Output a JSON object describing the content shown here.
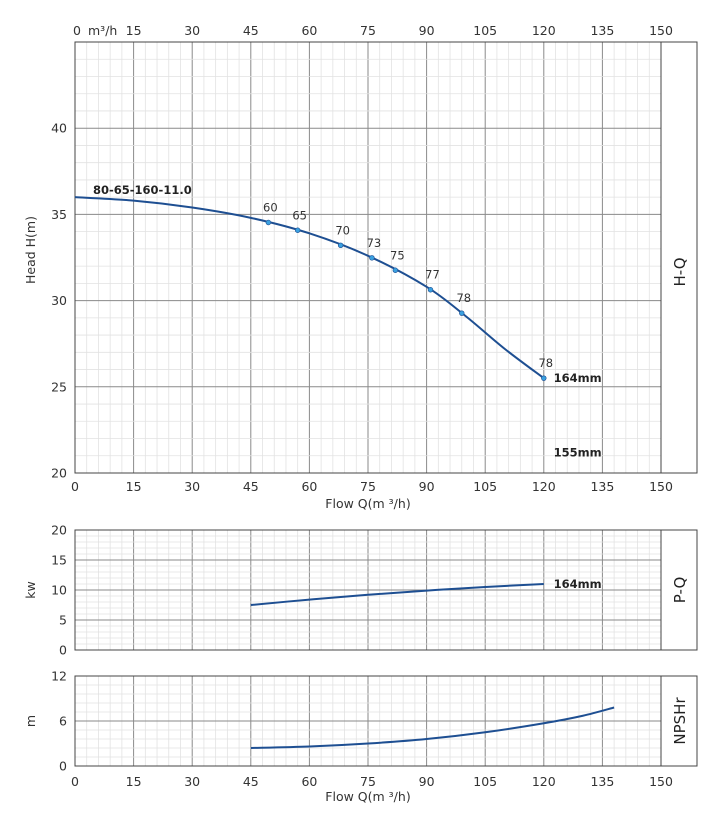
{
  "chart_data": [
    {
      "id": "hq",
      "type": "line",
      "ylabel": "Head H(m)",
      "xlabel": "Flow Q(m ³/h)",
      "side_label": "H-Q",
      "model_label": "80-65-160-11.0",
      "xlim": [
        0,
        150
      ],
      "ylim": [
        20,
        45
      ],
      "x_ticks": [
        0,
        15,
        30,
        45,
        60,
        75,
        90,
        105,
        120,
        135,
        150
      ],
      "y_ticks": [
        20,
        25,
        30,
        35,
        40
      ],
      "top_axis_unit": "m³/h",
      "top_ticks": [
        "15",
        "30",
        "45",
        "60",
        "75",
        "90",
        "105",
        "120",
        "135",
        "150"
      ],
      "top_zero": "0",
      "series": [
        {
          "name": "164mm",
          "x": [
            0,
            15,
            30,
            45,
            60,
            75,
            90,
            100,
            110,
            120
          ],
          "y": [
            36.0,
            35.8,
            35.4,
            34.8,
            33.9,
            32.6,
            30.8,
            29.1,
            27.2,
            25.5
          ]
        }
      ],
      "efficiency_points": [
        {
          "label": "60",
          "x": 49.5
        },
        {
          "label": "65",
          "x": 57
        },
        {
          "label": "70",
          "x": 68
        },
        {
          "label": "73",
          "x": 76
        },
        {
          "label": "75",
          "x": 82
        },
        {
          "label": "77",
          "x": 91
        },
        {
          "label": "78",
          "x": 99
        },
        {
          "label": "78",
          "x": 120
        }
      ],
      "annotations": [
        {
          "text": "164mm",
          "x": 121.5,
          "y": 25.5
        },
        {
          "text": "155mm",
          "x": 121.5,
          "y": 21.2
        }
      ]
    },
    {
      "id": "pq",
      "type": "line",
      "ylabel": "kw",
      "side_label": "P-Q",
      "xlim": [
        0,
        150
      ],
      "ylim": [
        0,
        20
      ],
      "y_ticks": [
        0,
        5,
        10,
        15,
        20
      ],
      "series": [
        {
          "name": "164mm",
          "x": [
            45,
            60,
            75,
            90,
            105,
            120
          ],
          "y": [
            7.5,
            8.4,
            9.2,
            9.9,
            10.5,
            11.0
          ]
        }
      ],
      "annotations": [
        {
          "text": "164mm",
          "x": 121.5,
          "y": 11.0
        }
      ]
    },
    {
      "id": "npsh",
      "type": "line",
      "ylabel": "m",
      "xlabel": "Flow Q(m ³/h)",
      "side_label": "NPSHr",
      "xlim": [
        0,
        150
      ],
      "ylim": [
        0,
        12
      ],
      "y_ticks": [
        0,
        6,
        12
      ],
      "x_ticks": [
        0,
        15,
        30,
        45,
        60,
        75,
        90,
        105,
        120,
        135,
        150
      ],
      "series": [
        {
          "name": "164mm",
          "x": [
            45,
            60,
            75,
            90,
            105,
            120,
            130,
            138
          ],
          "y": [
            2.4,
            2.6,
            3.0,
            3.6,
            4.5,
            5.7,
            6.7,
            7.8
          ]
        }
      ]
    }
  ]
}
